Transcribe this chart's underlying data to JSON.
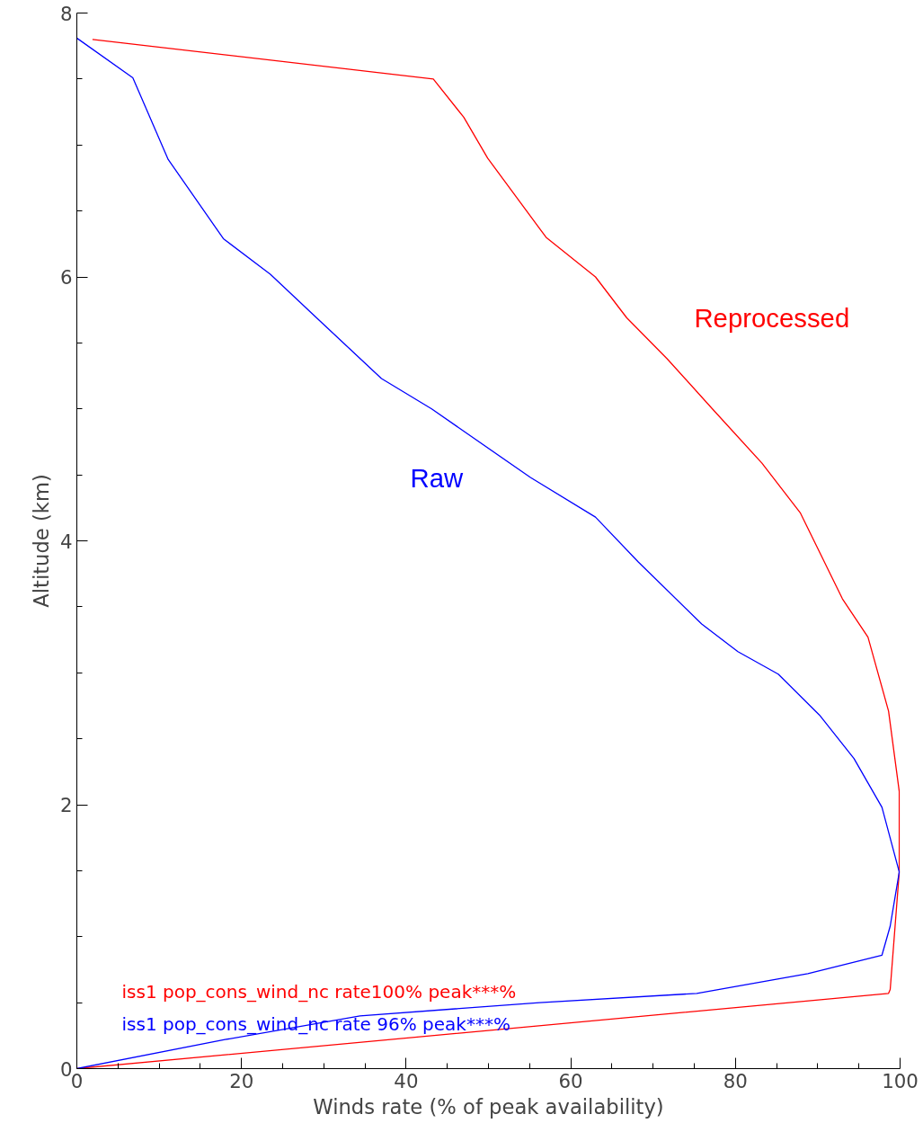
{
  "chart_data": {
    "type": "line",
    "xlabel": "Winds rate (% of peak availability)",
    "ylabel": "Altitude (km)",
    "xlim": [
      0,
      100
    ],
    "xticks": [
      0,
      20,
      40,
      60,
      80,
      100
    ],
    "ylim": [
      0,
      8
    ],
    "yticks": [
      0,
      2,
      4,
      6,
      8
    ],
    "grid": false,
    "legend": false,
    "marker": "none",
    "line_style": "solid",
    "series": [
      {
        "name": "Reprocessed",
        "color": "#ff0000",
        "x": [
          0,
          98.6,
          98.8,
          99.9,
          99.9,
          98.6,
          96.1,
          93.0,
          87.9,
          83.2,
          77.2,
          71.7,
          66.8,
          63.0,
          57.0,
          49.9,
          47.0,
          43.3,
          1.9
        ],
        "values": [
          0,
          0.57,
          0.6,
          1.49,
          2.1,
          2.71,
          3.27,
          3.56,
          4.21,
          4.59,
          5.0,
          5.38,
          5.69,
          6.0,
          6.3,
          6.9,
          7.21,
          7.5,
          7.8
        ]
      },
      {
        "name": "Raw",
        "color": "#0000ff",
        "x": [
          0,
          18.0,
          34.4,
          56.2,
          75.3,
          88.8,
          97.8,
          98.8,
          99.9,
          97.8,
          94.4,
          90.2,
          85.2,
          80.3,
          75.9,
          68.2,
          63.0,
          55.1,
          43.1,
          37.0,
          29.3,
          23.5,
          17.8,
          11.1,
          6.8,
          0
        ],
        "values": [
          0,
          0.22,
          0.4,
          0.5,
          0.57,
          0.72,
          0.86,
          1.08,
          1.49,
          1.98,
          2.35,
          2.68,
          2.99,
          3.16,
          3.37,
          3.84,
          4.18,
          4.48,
          5.0,
          5.23,
          5.68,
          6.02,
          6.29,
          6.89,
          7.51,
          7.81
        ]
      }
    ],
    "annotations": [
      "iss1 pop_cons_wind_nc rate100% peak***%",
      "iss1 pop_cons_wind_nc rate 96% peak***%"
    ]
  }
}
